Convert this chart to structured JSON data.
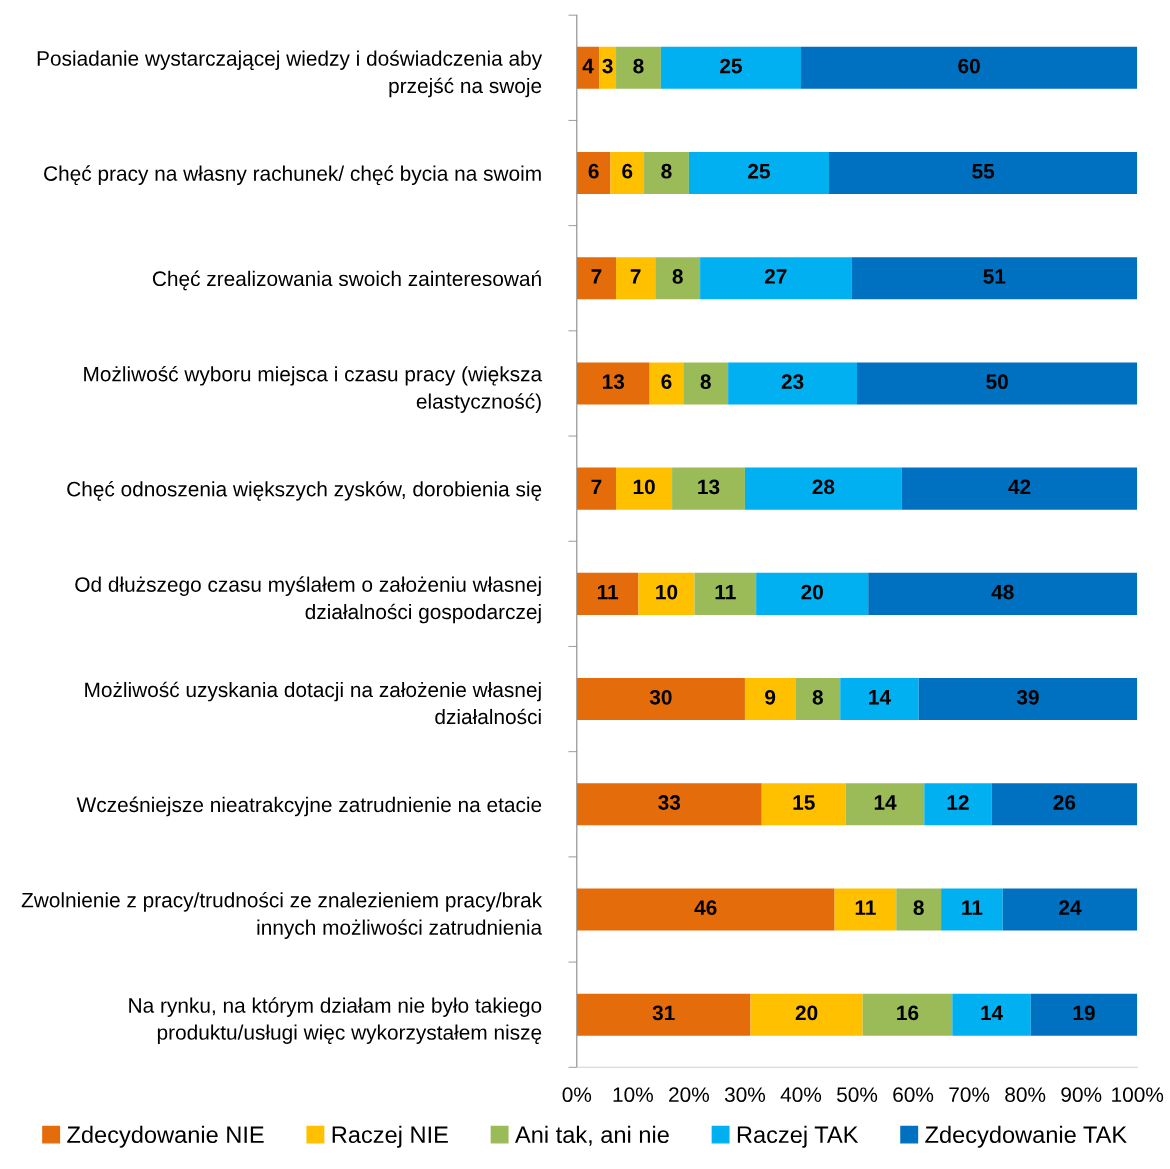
{
  "chart_data": {
    "type": "bar",
    "orientation": "horizontal",
    "stacked": true,
    "categories": [
      "Posiadanie wystarczającej wiedzy i doświadczenia aby przejść na swoje",
      "Chęć pracy na własny rachunek/ chęć bycia na swoim",
      "Chęć zrealizowania swoich zainteresowań",
      "Możliwość wyboru miejsca i czasu pracy (większa elastyczność)",
      "Chęć odnoszenia większych zysków, dorobienia się",
      "Od dłuższego czasu myślałem o założeniu własnej działalności gospodarczej",
      "Możliwość uzyskania dotacji na założenie własnej działalności",
      "Wcześniejsze nieatrakcyjne zatrudnienie na etacie",
      "Zwolnienie z pracy/trudności ze znalezieniem pracy/brak innych możliwości zatrudnienia",
      "Na rynku, na którym działam nie było takiego produktu/usługi więc wykorzystałem niszę"
    ],
    "series": [
      {
        "name": "Zdecydowanie NIE",
        "color": "#e46c0a",
        "values": [
          4,
          6,
          7,
          13,
          7,
          11,
          30,
          33,
          46,
          31
        ]
      },
      {
        "name": "Raczej NIE",
        "color": "#ffc000",
        "values": [
          3,
          6,
          7,
          6,
          10,
          10,
          9,
          15,
          11,
          20
        ]
      },
      {
        "name": "Ani tak, ani nie",
        "color": "#9bbb59",
        "values": [
          8,
          8,
          8,
          8,
          13,
          11,
          8,
          14,
          8,
          16
        ]
      },
      {
        "name": "Raczej TAK",
        "color": "#00b0f0",
        "values": [
          25,
          25,
          27,
          23,
          28,
          20,
          14,
          12,
          11,
          14
        ]
      },
      {
        "name": "Zdecydowanie TAK",
        "color": "#0070c0",
        "values": [
          60,
          55,
          51,
          50,
          42,
          48,
          39,
          26,
          24,
          19
        ]
      }
    ],
    "xlim": [
      0,
      100
    ],
    "xticks": [
      {
        "value": 0,
        "label": "0%"
      },
      {
        "value": 10,
        "label": "10%"
      },
      {
        "value": 20,
        "label": "20%"
      },
      {
        "value": 30,
        "label": "30%"
      },
      {
        "value": 40,
        "label": "40%"
      },
      {
        "value": 50,
        "label": "50%"
      },
      {
        "value": 60,
        "label": "60%"
      },
      {
        "value": 70,
        "label": "70%"
      },
      {
        "value": 80,
        "label": "80%"
      },
      {
        "value": 90,
        "label": "90%"
      },
      {
        "value": 100,
        "label": "100%"
      }
    ],
    "data_labels": true,
    "legend": "bottom",
    "grid": false
  }
}
